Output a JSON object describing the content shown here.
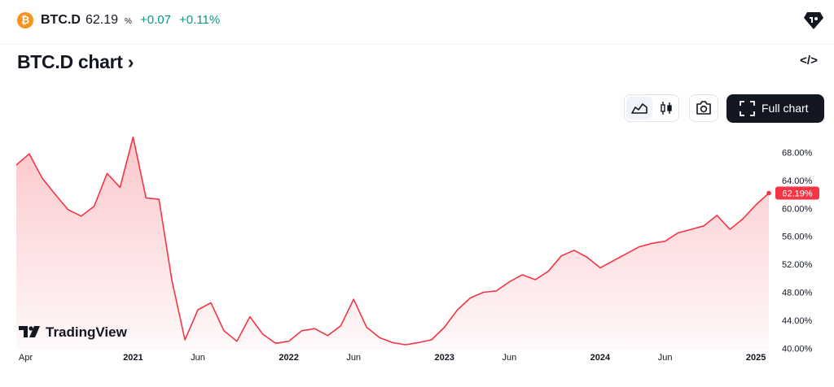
{
  "header": {
    "symbol": "BTC.D",
    "price": "62.19",
    "unit": "%",
    "change": "+0.07",
    "change_pct": "+0.11%",
    "coin_icon": "bitcoin-icon",
    "brand_color": "#f7931a",
    "up_color": "#089981"
  },
  "title": "BTC.D chart",
  "title_chevron": "›",
  "embed_label": "</>",
  "toolbar": {
    "full_chart_label": "Full chart"
  },
  "watermark": "TradingView",
  "chart_data": {
    "type": "area",
    "line_color": "#f23645",
    "fill_color": "#f23645",
    "last_value_label": "62.19%",
    "y_ticks": [
      "68.00%",
      "64.00%",
      "60.00%",
      "56.00%",
      "52.00%",
      "48.00%",
      "44.00%",
      "40.00%"
    ],
    "y_tick_values": [
      68,
      64,
      60,
      56,
      52,
      48,
      44,
      40
    ],
    "ylim": [
      39.8,
      71.2
    ],
    "x_tick_labels": [
      {
        "label": "Apr",
        "x": "2020-04",
        "bold": false
      },
      {
        "label": "2021",
        "x": "2021-01",
        "bold": true
      },
      {
        "label": "Jun",
        "x": "2021-06",
        "bold": false
      },
      {
        "label": "2022",
        "x": "2022-01",
        "bold": true
      },
      {
        "label": "Jun",
        "x": "2022-06",
        "bold": false
      },
      {
        "label": "2023",
        "x": "2023-01",
        "bold": true
      },
      {
        "label": "Jun",
        "x": "2023-06",
        "bold": false
      },
      {
        "label": "2024",
        "x": "2024-01",
        "bold": true
      },
      {
        "label": "Jun",
        "x": "2024-06",
        "bold": false
      },
      {
        "label": "2025",
        "x": "2025-01",
        "bold": true
      }
    ],
    "x": [
      "2020-04",
      "2020-05",
      "2020-06",
      "2020-07",
      "2020-08",
      "2020-09",
      "2020-10",
      "2020-11",
      "2020-12",
      "2021-01",
      "2021-02",
      "2021-03",
      "2021-04",
      "2021-05",
      "2021-06",
      "2021-07",
      "2021-08",
      "2021-09",
      "2021-10",
      "2021-11",
      "2021-12",
      "2022-01",
      "2022-02",
      "2022-03",
      "2022-04",
      "2022-05",
      "2022-06",
      "2022-07",
      "2022-08",
      "2022-09",
      "2022-10",
      "2022-11",
      "2022-12",
      "2023-01",
      "2023-02",
      "2023-03",
      "2023-04",
      "2023-05",
      "2023-06",
      "2023-07",
      "2023-08",
      "2023-09",
      "2023-10",
      "2023-11",
      "2023-12",
      "2024-01",
      "2024-02",
      "2024-03",
      "2024-04",
      "2024-05",
      "2024-06",
      "2024-07",
      "2024-08",
      "2024-09",
      "2024-10",
      "2024-11",
      "2024-12",
      "2025-01",
      "2025-02"
    ],
    "values": [
      66.2,
      67.8,
      64.3,
      62.0,
      59.8,
      58.9,
      60.3,
      65.0,
      63.0,
      70.2,
      61.5,
      61.3,
      49.6,
      41.2,
      45.5,
      46.5,
      42.5,
      41.0,
      44.5,
      42.0,
      40.7,
      41.0,
      42.5,
      42.8,
      41.8,
      43.2,
      47.0,
      43.0,
      41.5,
      40.8,
      40.5,
      40.8,
      41.2,
      43.0,
      45.5,
      47.2,
      48.0,
      48.2,
      49.5,
      50.5,
      49.8,
      51.0,
      53.2,
      54.0,
      53.0,
      51.5,
      52.5,
      53.5,
      54.5,
      55.0,
      55.3,
      56.5,
      57.0,
      57.5,
      59.0,
      57.0,
      58.5,
      60.5,
      62.19
    ]
  }
}
